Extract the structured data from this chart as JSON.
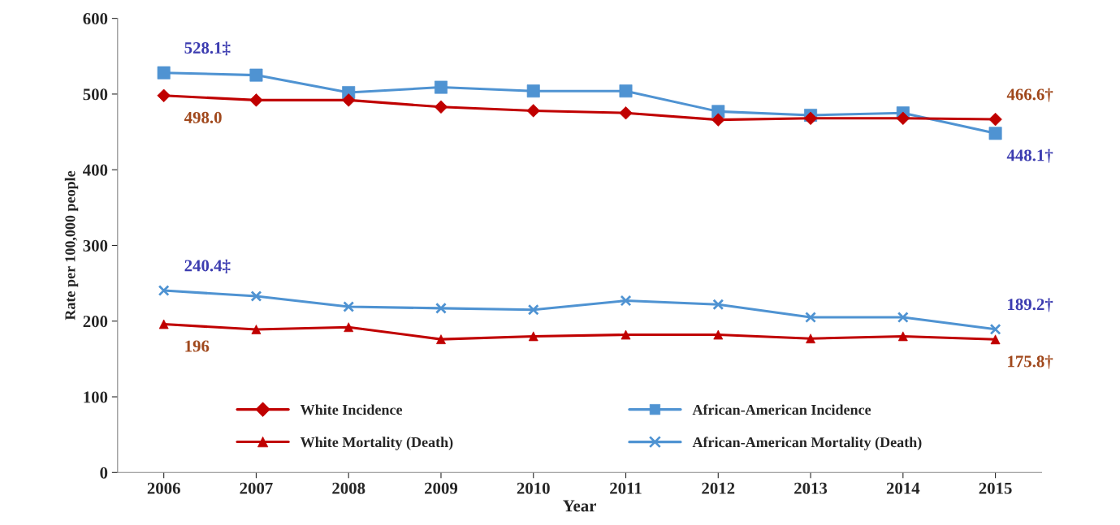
{
  "chart_data": {
    "type": "line",
    "xlabel": "Year",
    "ylabel": "Rate per 100,000 people",
    "categories": [
      "2006",
      "2007",
      "2008",
      "2009",
      "2010",
      "2011",
      "2012",
      "2013",
      "2014",
      "2015"
    ],
    "series": [
      {
        "name": "White Incidence",
        "color": "#c00000",
        "marker": "diamond",
        "values": [
          498.0,
          492,
          492,
          483,
          478,
          475,
          466,
          468,
          468,
          466.6
        ]
      },
      {
        "name": "African-American Incidence",
        "color": "#4f93d2",
        "marker": "square",
        "values": [
          528.1,
          525,
          502,
          509,
          504,
          504,
          477,
          472,
          475,
          448.1
        ]
      },
      {
        "name": "White Mortality (Death)",
        "color": "#c00000",
        "marker": "triangle",
        "values": [
          196,
          189,
          192,
          176,
          180,
          182,
          182,
          177,
          180,
          175.8
        ]
      },
      {
        "name": "African-American Mortality (Death)",
        "color": "#4f93d2",
        "marker": "cross",
        "values": [
          240.4,
          233,
          219,
          217,
          215,
          227,
          222,
          205,
          205,
          189.2
        ]
      }
    ],
    "ylim": [
      0,
      600
    ],
    "yticks": [
      0,
      100,
      200,
      300,
      400,
      500,
      600
    ],
    "grid": false,
    "legend": "bottom",
    "annotations": [
      {
        "text": "528.1‡",
        "x": "2006",
        "y": 528.1
      },
      {
        "text": "498.0",
        "x": "2006",
        "y": 498.0
      },
      {
        "text": "466.6†",
        "x": "2015",
        "y": 466.6
      },
      {
        "text": "448.1†",
        "x": "2015",
        "y": 448.1
      },
      {
        "text": "240.4‡",
        "x": "2006",
        "y": 240.4
      },
      {
        "text": "196",
        "x": "2006",
        "y": 196
      },
      {
        "text": "189.2†",
        "x": "2015",
        "y": 189.2
      },
      {
        "text": "175.8†",
        "x": "2015",
        "y": 175.8
      }
    ]
  }
}
